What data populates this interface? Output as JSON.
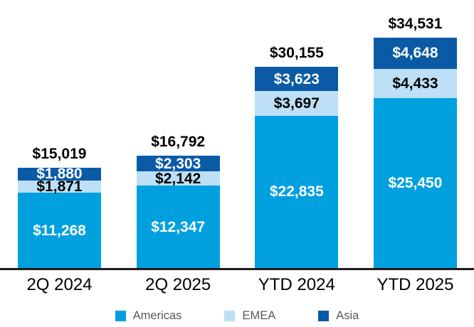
{
  "chart_data": {
    "type": "bar",
    "stacked": true,
    "title": "",
    "categories": [
      "2Q 2024",
      "2Q 2025",
      "YTD 2024",
      "YTD 2025"
    ],
    "series": [
      {
        "name": "Americas",
        "color": "#00A0DF",
        "label_color": "#FFFFFF",
        "values": [
          11268,
          12347,
          22835,
          25450
        ],
        "labels": [
          "$11,268",
          "$12,347",
          "$22,835",
          "$25,450"
        ]
      },
      {
        "name": "EMEA",
        "color": "#BDE0F6",
        "label_color": "#000000",
        "values": [
          1871,
          2142,
          3697,
          4433
        ],
        "labels": [
          "$1,871",
          "$2,142",
          "$3,697",
          "$4,433"
        ]
      },
      {
        "name": "Asia",
        "color": "#0A5AA6",
        "label_color": "#FFFFFF",
        "values": [
          1880,
          2303,
          3623,
          4648
        ],
        "labels": [
          "$1,880",
          "$2,303",
          "$3,623",
          "$4,648"
        ]
      }
    ],
    "totals": [
      15019,
      16792,
      30155,
      34531
    ],
    "total_labels": [
      "$15,019",
      "$16,792",
      "$30,155",
      "$34,531"
    ],
    "legend": {
      "position": "bottom",
      "entries": [
        "Americas",
        "EMEA",
        "Asia"
      ]
    },
    "axis": {
      "baseline_color": "#1A1A1A",
      "tick_label_color": "#000000",
      "legend_text_color": "#595959"
    },
    "ylim": [
      0,
      34531
    ],
    "grid": false
  }
}
